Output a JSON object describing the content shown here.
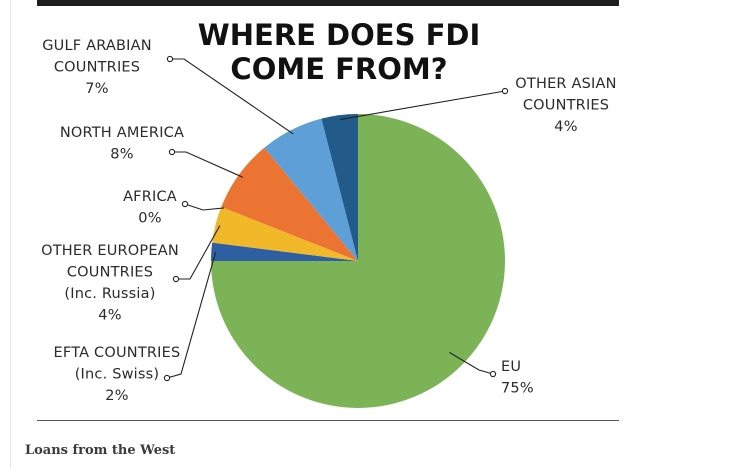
{
  "chart_data": {
    "type": "pie",
    "title_lines": [
      "WHERE DOES FDI",
      "COME FROM?"
    ],
    "start_angle_deg": -90,
    "slices": [
      {
        "name": "EU",
        "value": 75,
        "color": "#7cb356",
        "label_lines": [
          "EU",
          "75%"
        ]
      },
      {
        "name": "EFTA COUNTRIES (Inc. Swiss)",
        "value": 2,
        "color": "#2e5fa2",
        "label_lines": [
          "EFTA COUNTRIES",
          "(Inc. Swiss)",
          "2%"
        ]
      },
      {
        "name": "OTHER EUROPEAN COUNTRIES (Inc. Russia)",
        "value": 4,
        "color": "#f1b82a",
        "label_lines": [
          "OTHER EUROPEAN",
          "COUNTRIES",
          "(Inc. Russia)",
          "4%"
        ]
      },
      {
        "name": "AFRICA",
        "value": 0,
        "color": "#9b9b9b",
        "label_lines": [
          "AFRICA",
          "0%"
        ]
      },
      {
        "name": "NORTH AMERICA",
        "value": 8,
        "color": "#ec7432",
        "label_lines": [
          "NORTH AMERICA",
          "8%"
        ]
      },
      {
        "name": "GULF ARABIAN COUNTRIES",
        "value": 7,
        "color": "#5d9fd6",
        "label_lines": [
          "GULF ARABIAN",
          "COUNTRIES",
          "7%"
        ]
      },
      {
        "name": "OTHER ASIAN COUNTRIES",
        "value": 4,
        "color": "#225a8a",
        "label_lines": [
          "OTHER ASIAN",
          "COUNTRIES",
          "4%"
        ]
      }
    ]
  },
  "caption": "Loans from the West"
}
